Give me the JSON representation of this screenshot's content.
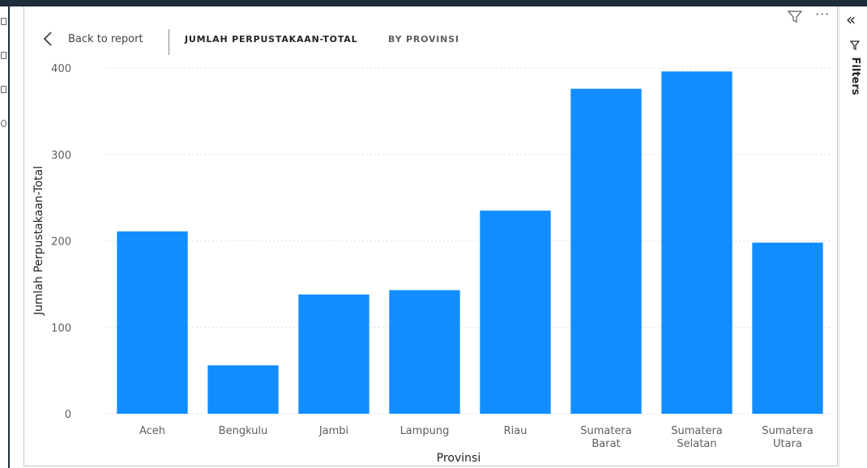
{
  "header": {
    "back_label": "Back to report",
    "title": "JUMLAH PERPUSTAKAAN-TOTAL",
    "subtitle": "BY PROVINSI"
  },
  "filters_pane": {
    "label": "Filters"
  },
  "icons": {
    "back": "chevron-left-icon",
    "filter": "filter-funnel-icon",
    "more": "more-options-icon",
    "collapse": "double-chevron-left-icon"
  },
  "colors": {
    "bar": "#118dff",
    "grid": "#e1dfdd"
  },
  "chart_data": {
    "type": "bar",
    "categories": [
      "Aceh",
      "Bengkulu",
      "Jambi",
      "Lampung",
      "Riau",
      "Sumatera Barat",
      "Sumatera Selatan",
      "Sumatera Utara"
    ],
    "category_label_lines": [
      [
        "Aceh"
      ],
      [
        "Bengkulu"
      ],
      [
        "Jambi"
      ],
      [
        "Lampung"
      ],
      [
        "Riau"
      ],
      [
        "Sumatera",
        "Barat"
      ],
      [
        "Sumatera",
        "Selatan"
      ],
      [
        "Sumatera",
        "Utara"
      ]
    ],
    "values": [
      211,
      56,
      138,
      143,
      235,
      376,
      396,
      198
    ],
    "xlabel": "Provinsi",
    "ylabel": "Jumlah Perpustakaan-Total",
    "ylim": [
      0,
      400
    ],
    "yticks": [
      0,
      100,
      200,
      300,
      400
    ],
    "grid": true
  }
}
